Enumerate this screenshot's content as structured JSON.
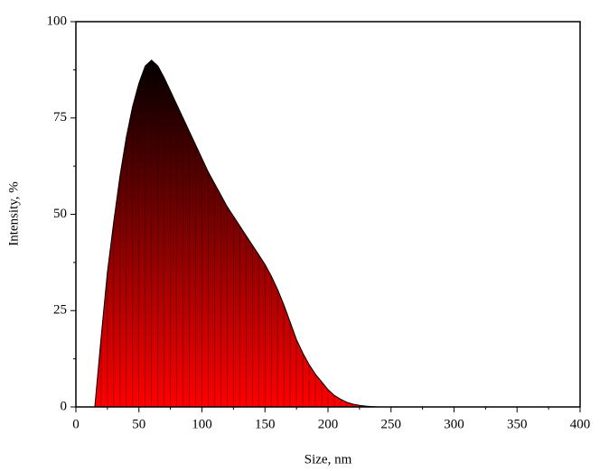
{
  "chart_data": {
    "type": "area",
    "x_label": "Size, nm",
    "y_label": "Intensity, %",
    "x": [
      15,
      20,
      25,
      30,
      35,
      40,
      45,
      50,
      55,
      60,
      65,
      70,
      75,
      80,
      85,
      90,
      95,
      100,
      105,
      110,
      115,
      120,
      125,
      130,
      135,
      140,
      145,
      150,
      155,
      160,
      165,
      170,
      175,
      180,
      185,
      190,
      195,
      200,
      205,
      210,
      215,
      220,
      225,
      230,
      235,
      240,
      400
    ],
    "values": [
      0,
      18,
      35,
      48,
      60,
      70,
      78,
      84,
      88.5,
      90,
      88.5,
      85.5,
      82,
      78.5,
      75,
      71.5,
      68,
      64.5,
      61,
      58,
      55,
      52,
      49.5,
      47,
      44.5,
      42,
      39.5,
      37,
      34,
      30.5,
      26.5,
      22,
      17.5,
      14,
      11,
      8.5,
      6.5,
      4.5,
      3,
      2,
      1.2,
      0.7,
      0.4,
      0.2,
      0.1,
      0,
      0
    ],
    "color_top": "#000000",
    "color_bottom": "#ff0000",
    "xlim": [
      0,
      400
    ],
    "xticks": [
      0,
      50,
      100,
      150,
      200,
      250,
      300,
      350,
      400
    ],
    "ylim": [
      0,
      100
    ],
    "yticks": [
      0,
      25,
      50,
      75,
      100
    ]
  }
}
